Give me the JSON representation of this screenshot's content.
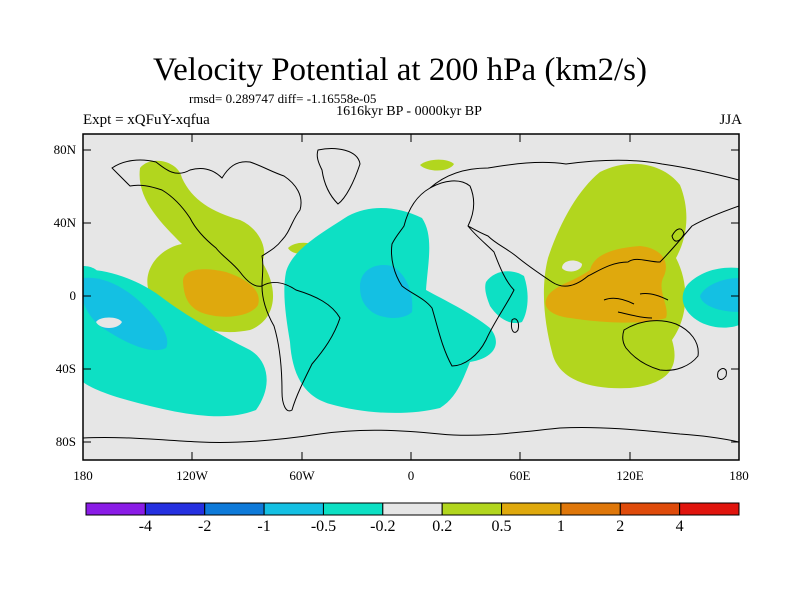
{
  "title": "Velocity Potential at 200 hPa (km2/s)",
  "stats": "rmsd= 0.289747 diff= -1.16558e-05",
  "period": "1616kyr BP - 0000kyr BP",
  "experiment": "Expt = xQFuY-xqfua",
  "season": "JJA",
  "lat_labels": [
    "80N",
    "40N",
    "0",
    "40S",
    "80S"
  ],
  "lon_labels": [
    "180",
    "120W",
    "60W",
    "0",
    "60E",
    "120E",
    "180"
  ],
  "colorbar": {
    "colors": [
      "#8a1ce6",
      "#2530e0",
      "#0e7ad9",
      "#14c0e3",
      "#0de0c4",
      "#e6e6e6",
      "#b2d61e",
      "#dfa90d",
      "#df770a",
      "#df4b0b",
      "#e0140d"
    ],
    "labels": [
      "-4",
      "-2",
      "-1",
      "-0.5",
      "-0.2",
      "0.2",
      "0.5",
      "1",
      "2",
      "4"
    ]
  },
  "colors": {
    "background": "#e6e6e6",
    "neg_weak": "#0de0c4",
    "neg_mid": "#14c0e3",
    "pos_weak": "#b2d61e",
    "pos_mid": "#dfa90d"
  }
}
